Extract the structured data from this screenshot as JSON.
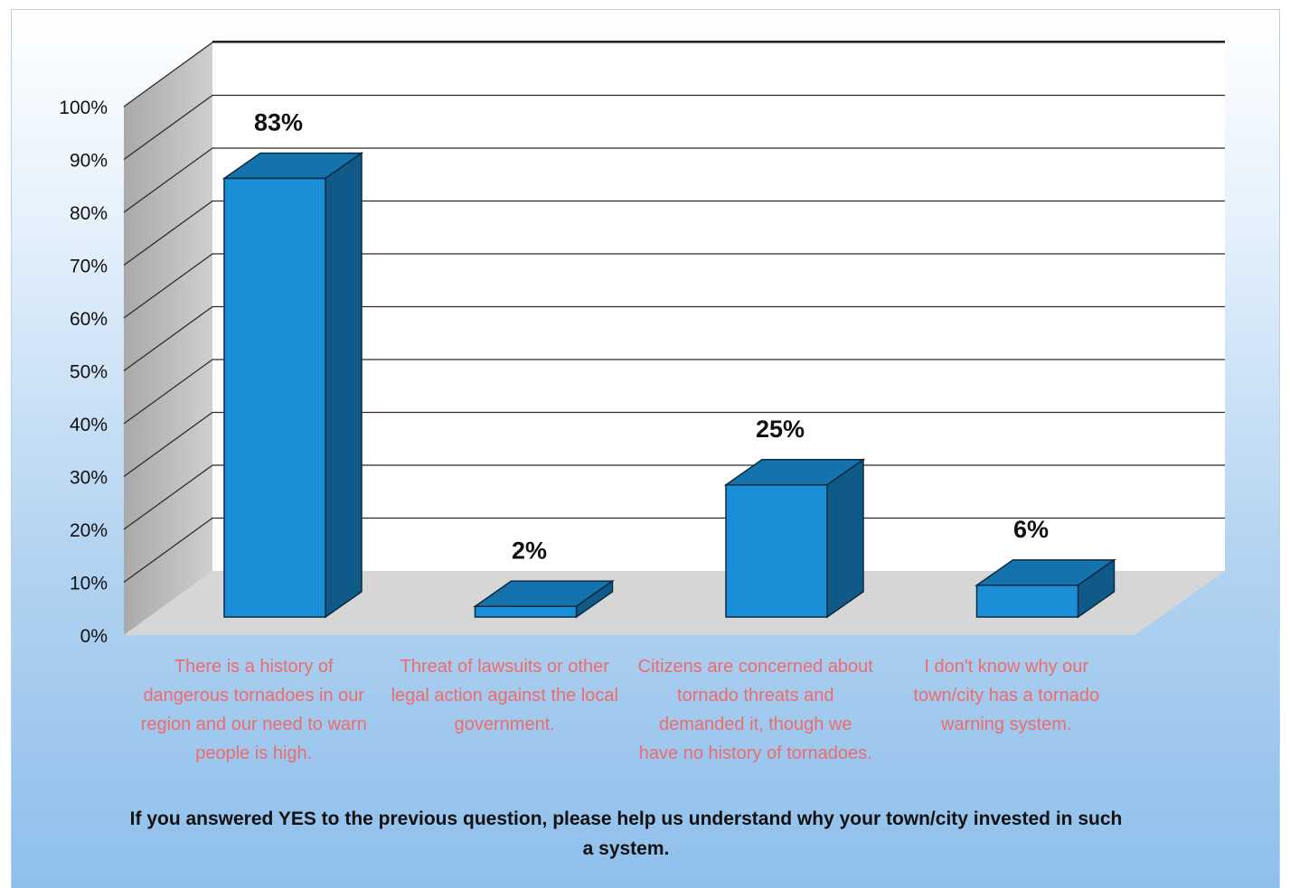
{
  "chart_data": {
    "type": "bar",
    "title": "If you answered YES to the previous question, please help us understand why your town/city invested in such a system.",
    "categories": [
      "There is a history of dangerous tornadoes in our region and our need to warn people is high.",
      "Threat of lawsuits or other legal action against the local government.",
      "Citizens are concerned about tornado threats and demanded it, though we have no history of tornadoes.",
      "I don't know why our town/city has a tornado warning system."
    ],
    "series": [
      {
        "values": [
          83,
          2,
          25,
          6
        ]
      }
    ],
    "data_labels": [
      "83%",
      "2%",
      "25%",
      "6%"
    ],
    "y_ticks": [
      "0%",
      "10%",
      "20%",
      "30%",
      "40%",
      "50%",
      "60%",
      "70%",
      "80%",
      "90%",
      "100%"
    ],
    "ylim": [
      0,
      100
    ],
    "grid": true,
    "legend": "none",
    "three_d": true,
    "colors": {
      "bar_front": "#1a8fd8",
      "bar_top": "#1473ad",
      "bar_side": "#105a89",
      "category_label": "#ef6b6b",
      "back_wall": "#ffffff",
      "side_wall": "#b9b9b9",
      "floor": "#d6d6d6"
    }
  }
}
